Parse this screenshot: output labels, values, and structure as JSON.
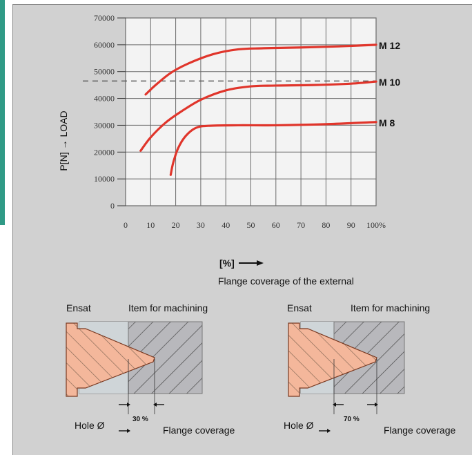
{
  "chart_data": {
    "type": "line",
    "x_ticks": [
      "0",
      "10",
      "20",
      "30",
      "40",
      "50",
      "60",
      "70",
      "80",
      "90",
      "100%"
    ],
    "y_ticks": [
      "0",
      "10000",
      "20000",
      "30000",
      "40000",
      "50000",
      "60000",
      "70000"
    ],
    "xlim": [
      0,
      100
    ],
    "ylim": [
      0,
      70000
    ],
    "grid": true,
    "ylabel": "P[N] → LOAD",
    "xlabel_unit": "[%]",
    "xlabel_text": "Flange coverage of the external",
    "reference_line": {
      "y": 46500,
      "style": "dashed"
    },
    "series": [
      {
        "name": "M 12",
        "x": [
          8,
          12,
          18,
          25,
          35,
          45,
          55,
          70,
          85,
          100
        ],
        "y": [
          41500,
          45000,
          49500,
          53000,
          56500,
          58300,
          58700,
          59000,
          59400,
          60000
        ]
      },
      {
        "name": "M 10",
        "x": [
          6,
          10,
          16,
          22,
          30,
          40,
          50,
          60,
          75,
          90,
          100
        ],
        "y": [
          20500,
          25500,
          31000,
          35000,
          39500,
          43000,
          44500,
          44800,
          45000,
          45500,
          46300
        ]
      },
      {
        "name": "M 8",
        "x": [
          18,
          19,
          21,
          24,
          28,
          33,
          45,
          60,
          80,
          100
        ],
        "y": [
          11500,
          16000,
          21500,
          26000,
          29000,
          29800,
          30000,
          30000,
          30400,
          31200
        ]
      }
    ],
    "colors": {
      "series": "#e0352b",
      "grid": "#6a6a6a",
      "plot_bg": "#f3f3f3",
      "panel_bg": "#d1d1d1"
    }
  },
  "diagrams": [
    {
      "left_label": "Ensat",
      "right_label": "Item for machining",
      "hole_label": "Hole Ø",
      "percent_label": "30 %",
      "coverage_label": "Flange coverage",
      "coverage_value": 30
    },
    {
      "left_label": "Ensat",
      "right_label": "Item for machining",
      "hole_label": "Hole Ø",
      "percent_label": "70 %",
      "coverage_label": "Flange coverage",
      "coverage_value": 70
    }
  ],
  "colors": {
    "insert_fill": "#f4b79b",
    "insert_stroke": "#7a3a22",
    "work_fill": "#b8b8bc",
    "hatch": "#4a4a4a",
    "accent": "#2f9a86"
  }
}
